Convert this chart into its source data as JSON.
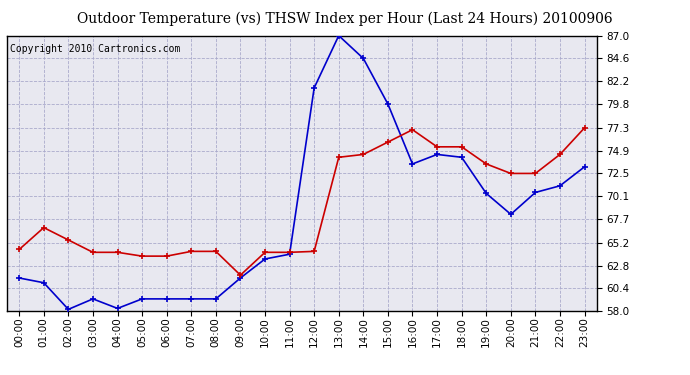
{
  "title": "Outdoor Temperature (vs) THSW Index per Hour (Last 24 Hours) 20100906",
  "copyright": "Copyright 2010 Cartronics.com",
  "x_labels": [
    "00:00",
    "01:00",
    "02:00",
    "03:00",
    "04:00",
    "05:00",
    "06:00",
    "07:00",
    "08:00",
    "09:00",
    "10:00",
    "11:00",
    "12:00",
    "13:00",
    "14:00",
    "15:00",
    "16:00",
    "17:00",
    "18:00",
    "19:00",
    "20:00",
    "21:00",
    "22:00",
    "23:00"
  ],
  "outdoor_temp": [
    61.5,
    61.0,
    58.2,
    59.3,
    58.3,
    59.3,
    59.3,
    59.3,
    59.3,
    61.5,
    63.5,
    64.0,
    81.5,
    87.0,
    84.6,
    79.8,
    73.5,
    74.5,
    74.2,
    70.4,
    68.2,
    70.5,
    71.2,
    73.2
  ],
  "thsw_index": [
    64.5,
    66.8,
    65.5,
    64.2,
    64.2,
    63.8,
    63.8,
    64.3,
    64.3,
    61.8,
    64.2,
    64.2,
    64.3,
    74.2,
    74.5,
    75.8,
    77.1,
    75.3,
    75.3,
    73.5,
    72.5,
    72.5,
    74.5,
    77.3
  ],
  "temp_color": "#0000cc",
  "thsw_color": "#cc0000",
  "bg_color": "#ffffff",
  "plot_bg_color": "#e8e8f0",
  "grid_color": "#aaaacc",
  "ylim": [
    58.0,
    87.0
  ],
  "yticks": [
    58.0,
    60.4,
    62.8,
    65.2,
    67.7,
    70.1,
    72.5,
    74.9,
    77.3,
    79.8,
    82.2,
    84.6,
    87.0
  ],
  "title_fontsize": 10,
  "copyright_fontsize": 7,
  "tick_fontsize": 7.5
}
